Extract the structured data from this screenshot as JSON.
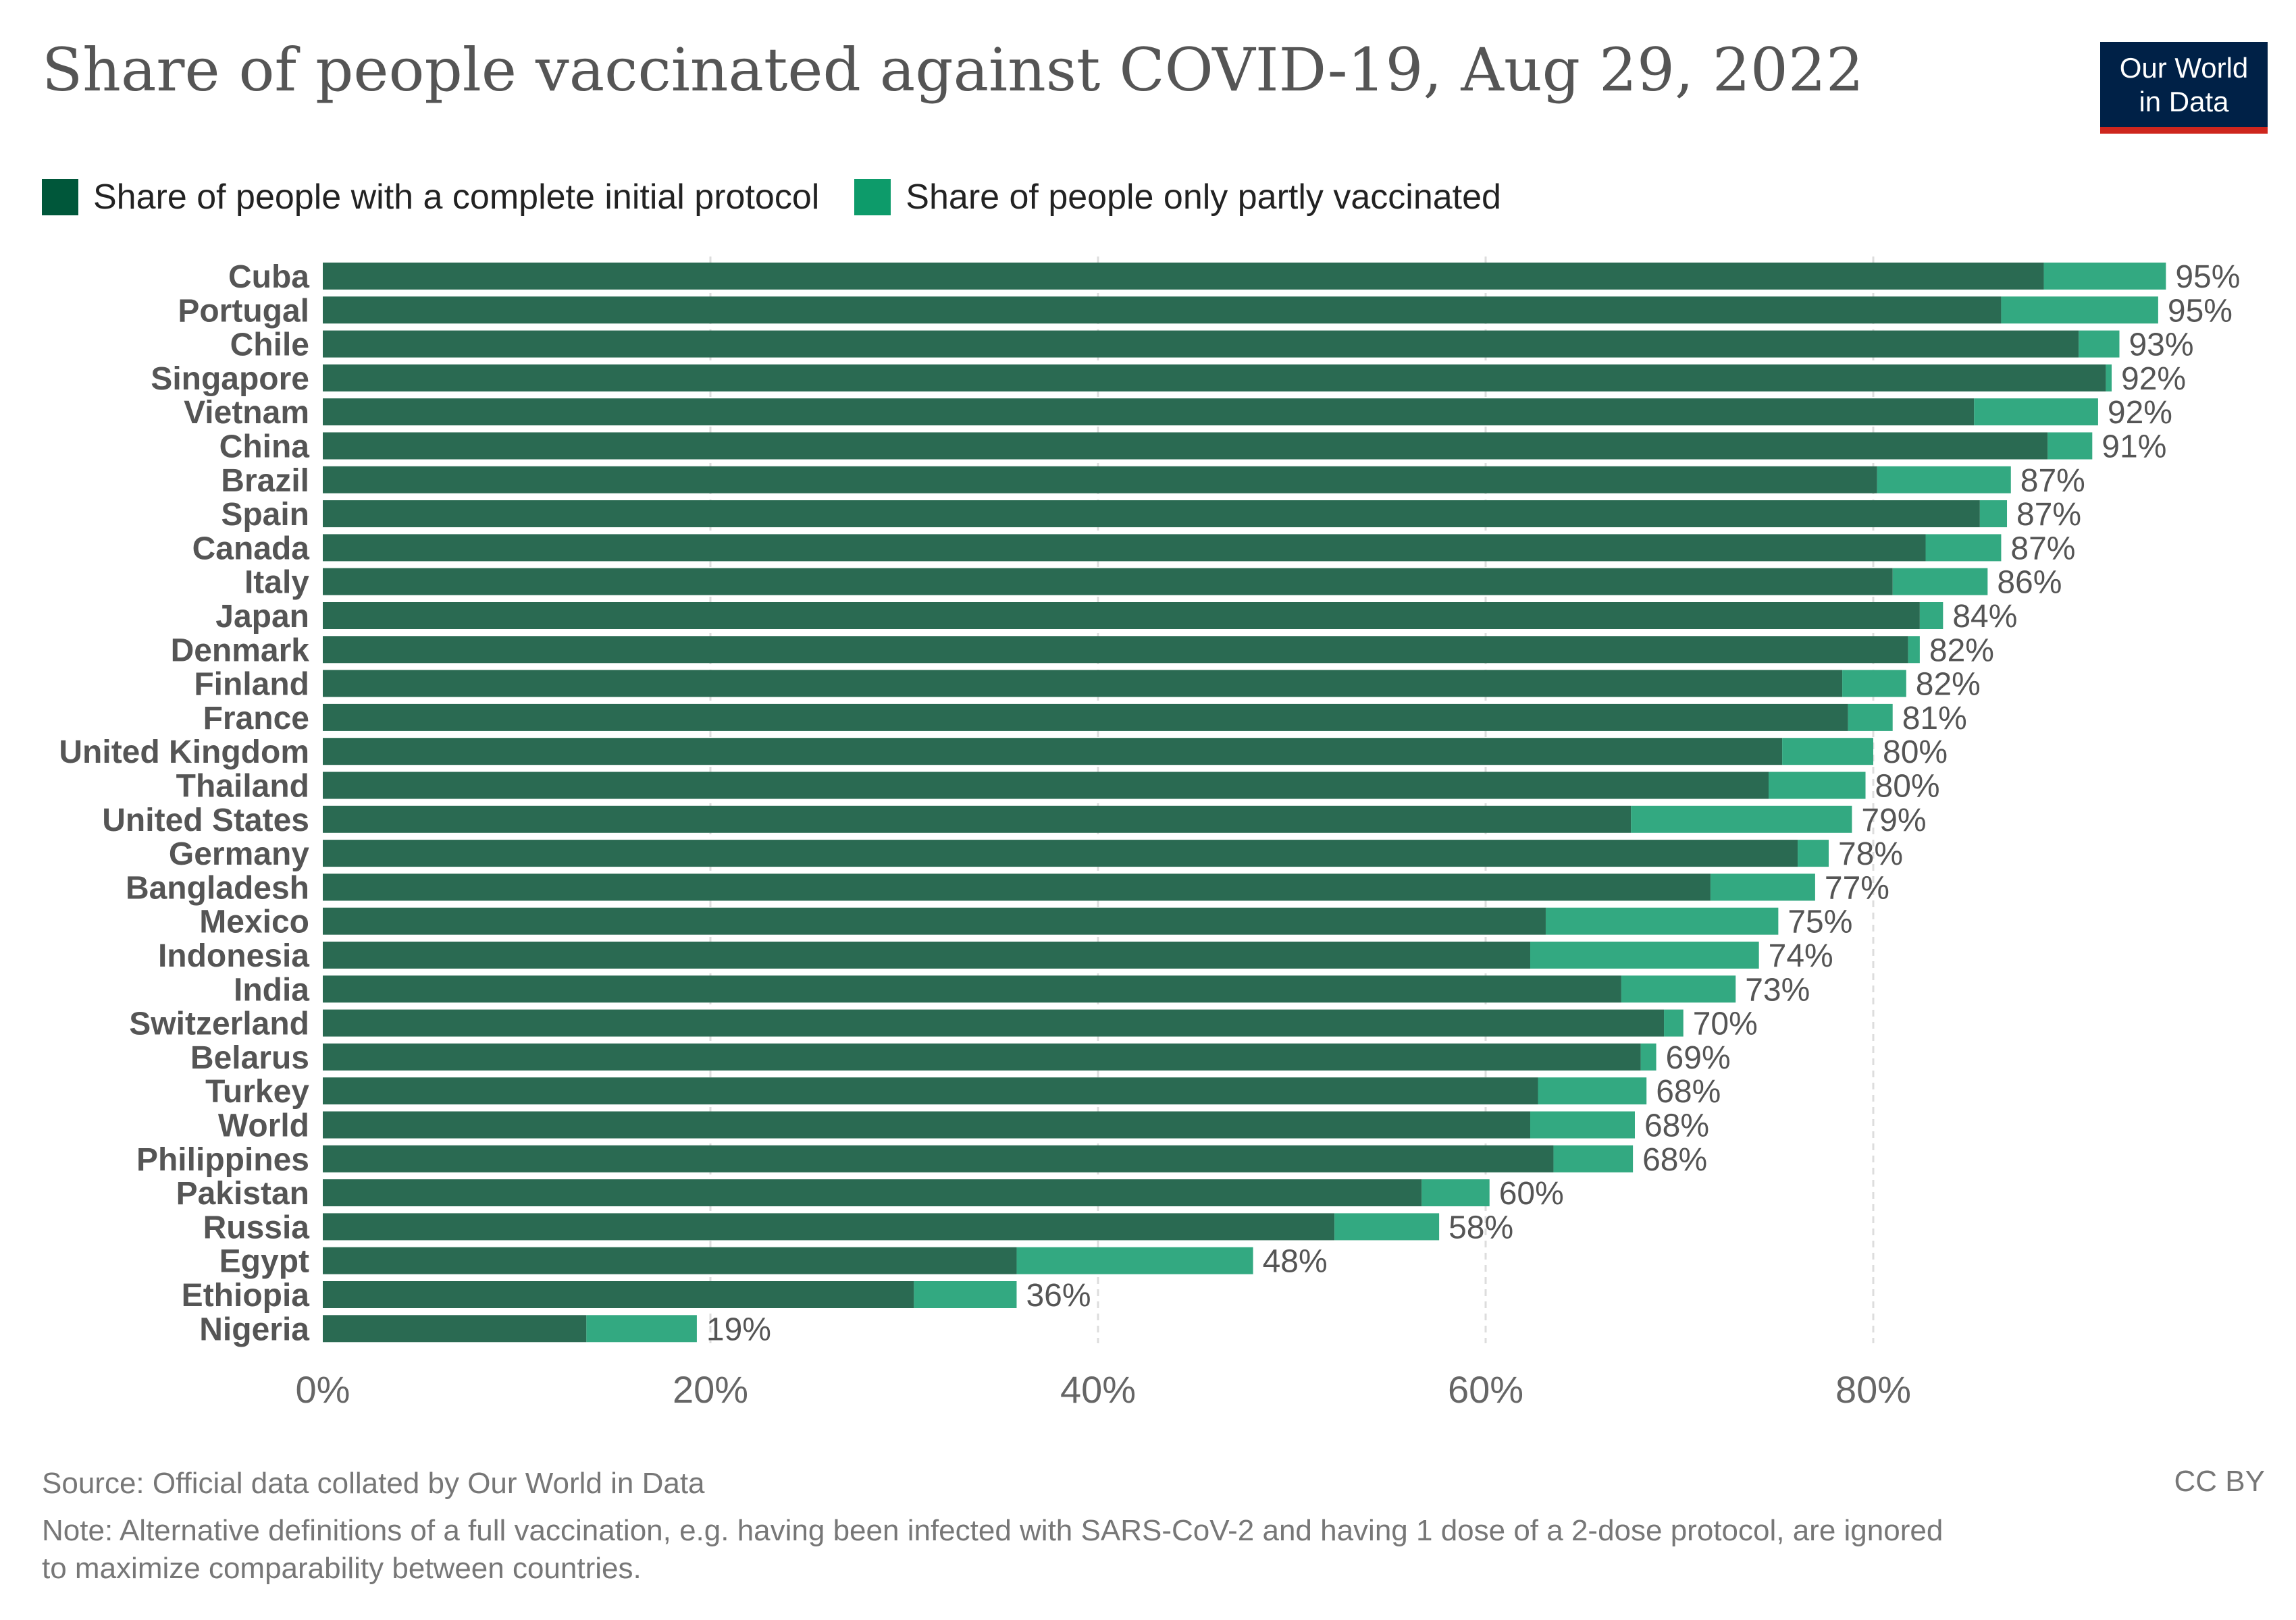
{
  "header": {
    "title": "Share of people vaccinated against COVID-19, Aug 29, 2022",
    "logo_line1": "Our World",
    "logo_line2": "in Data"
  },
  "footer": {
    "source": "Source: Official data collated by Our World in Data",
    "license": "CC BY",
    "note_line1": "Note: Alternative definitions of a full vaccination, e.g. having been infected with SARS-CoV-2 and having 1 dose of a 2-dose protocol, are ignored",
    "note_line2": "to maximize comparability between countries."
  },
  "colors": {
    "complete": "#2a6a52",
    "partial": "#33a981",
    "legend_complete": "#00573a",
    "legend_partial": "#0d9b6a",
    "grid": "#dddddd",
    "axis_text": "#666666",
    "label_text": "#555555"
  },
  "chart_data": {
    "type": "bar",
    "orientation": "horizontal",
    "stacked": true,
    "categories": [
      "Cuba",
      "Portugal",
      "Chile",
      "Singapore",
      "Vietnam",
      "China",
      "Brazil",
      "Spain",
      "Canada",
      "Italy",
      "Japan",
      "Denmark",
      "Finland",
      "France",
      "United Kingdom",
      "Thailand",
      "United States",
      "Germany",
      "Bangladesh",
      "Mexico",
      "Indonesia",
      "India",
      "Switzerland",
      "Belarus",
      "Turkey",
      "World",
      "Philippines",
      "Pakistan",
      "Russia",
      "Egypt",
      "Ethiopia",
      "Nigeria"
    ],
    "series": [
      {
        "name": "Share of people with a complete initial protocol",
        "values": [
          88.8,
          86.6,
          90.6,
          92.0,
          85.2,
          89.0,
          80.2,
          85.5,
          82.7,
          81.0,
          82.4,
          81.8,
          78.4,
          78.7,
          75.3,
          74.6,
          67.5,
          76.1,
          71.6,
          63.1,
          62.3,
          67.0,
          69.2,
          68.0,
          62.7,
          62.3,
          63.5,
          56.7,
          52.2,
          35.8,
          30.5,
          13.6
        ]
      },
      {
        "name": "Share of people only partly vaccinated",
        "values": [
          6.3,
          8.1,
          2.1,
          0.3,
          6.4,
          2.3,
          6.9,
          1.4,
          3.9,
          4.9,
          1.2,
          0.6,
          3.3,
          2.3,
          4.7,
          5.0,
          11.4,
          1.6,
          5.4,
          12.0,
          11.8,
          5.9,
          1.0,
          0.8,
          5.6,
          5.4,
          4.1,
          3.5,
          5.4,
          12.2,
          5.3,
          5.7
        ]
      }
    ],
    "data_labels": [
      "95%",
      "95%",
      "93%",
      "92%",
      "92%",
      "91%",
      "87%",
      "87%",
      "87%",
      "86%",
      "84%",
      "82%",
      "82%",
      "81%",
      "80%",
      "80%",
      "79%",
      "78%",
      "77%",
      "75%",
      "74%",
      "73%",
      "70%",
      "69%",
      "68%",
      "68%",
      "68%",
      "60%",
      "58%",
      "48%",
      "36%",
      "19%"
    ],
    "x_ticks": [
      0,
      20,
      40,
      60,
      80
    ],
    "x_tick_labels": [
      "0%",
      "20%",
      "40%",
      "60%",
      "80%"
    ],
    "xlim": [
      0,
      100
    ],
    "grid": "vertical dashed",
    "legend_placement": "top"
  }
}
